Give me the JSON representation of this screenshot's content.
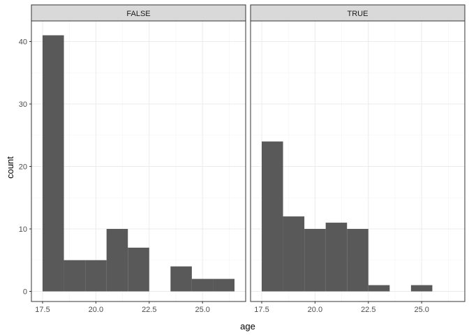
{
  "chart_data": {
    "type": "bar",
    "subtype": "histogram",
    "xlabel": "age",
    "ylabel": "count",
    "bin_width": 1,
    "xlim": [
      17.0,
      27.0
    ],
    "ylim": [
      0,
      43
    ],
    "x_ticks": [
      "17.5",
      "20.0",
      "22.5",
      "25.0"
    ],
    "x_tick_values": [
      17.5,
      20.0,
      22.5,
      25.0
    ],
    "y_ticks": [
      "0",
      "10",
      "20",
      "30",
      "40"
    ],
    "y_tick_values": [
      0,
      10,
      20,
      30,
      40
    ],
    "grid": true,
    "bar_color": "#595959",
    "panels": [
      {
        "facet": "FALSE",
        "bins": [
          {
            "x": 18,
            "count": 41
          },
          {
            "x": 19,
            "count": 5
          },
          {
            "x": 20,
            "count": 5
          },
          {
            "x": 21,
            "count": 10
          },
          {
            "x": 22,
            "count": 7
          },
          {
            "x": 23,
            "count": 0
          },
          {
            "x": 24,
            "count": 4
          },
          {
            "x": 25,
            "count": 2
          },
          {
            "x": 26,
            "count": 2
          }
        ]
      },
      {
        "facet": "TRUE",
        "bins": [
          {
            "x": 18,
            "count": 24
          },
          {
            "x": 19,
            "count": 12
          },
          {
            "x": 20,
            "count": 10
          },
          {
            "x": 21,
            "count": 11
          },
          {
            "x": 22,
            "count": 10
          },
          {
            "x": 23,
            "count": 1
          },
          {
            "x": 24,
            "count": 0
          },
          {
            "x": 25,
            "count": 1
          }
        ]
      }
    ]
  }
}
